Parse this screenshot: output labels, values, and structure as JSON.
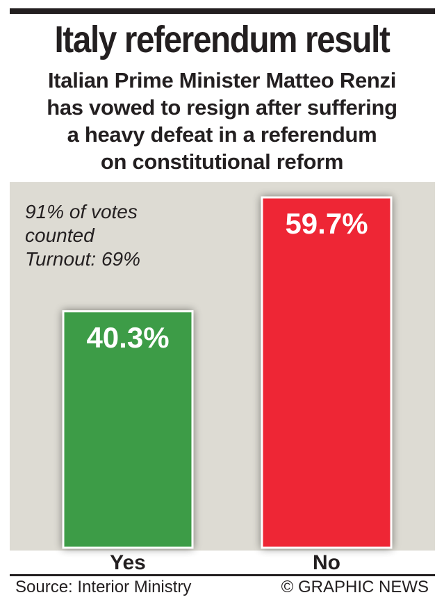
{
  "header": {
    "title": "Italy referendum result",
    "subtitle_lines": [
      "Italian Prime Minister Matteo Renzi",
      "has vowed to resign after suffering",
      "a heavy defeat in a referendum",
      "on constitutional reform"
    ]
  },
  "note_lines": [
    "91% of votes",
    "counted",
    "Turnout: 69%"
  ],
  "chart_data": {
    "type": "bar",
    "categories": [
      "Yes",
      "No"
    ],
    "values": [
      40.3,
      59.7
    ],
    "value_labels": [
      "40.3%",
      "59.7%"
    ],
    "colors": [
      "#3e9c46",
      "#ee2836"
    ],
    "title": "Italy referendum result",
    "xlabel": "",
    "ylabel": "",
    "ylim": [
      0,
      59.7
    ],
    "grid": false,
    "legend": "none"
  },
  "footer": {
    "source": "Source: Interior Ministry",
    "credit": "© GRAPHIC NEWS"
  }
}
